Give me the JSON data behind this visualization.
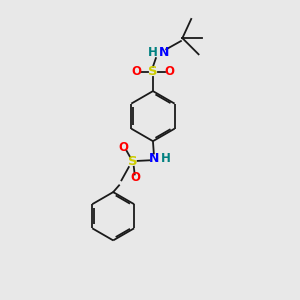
{
  "bg_color": "#e8e8e8",
  "bond_color": "#1a1a1a",
  "S_color": "#cccc00",
  "O_color": "#ff0000",
  "N_color": "#0000ff",
  "H_color": "#008080",
  "lw": 1.3,
  "fs": 8.5,
  "xlim": [
    0,
    10
  ],
  "ylim": [
    0,
    10
  ]
}
